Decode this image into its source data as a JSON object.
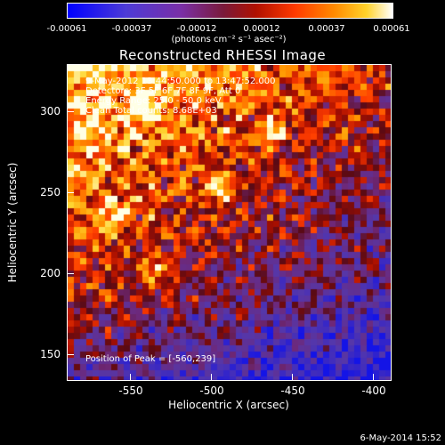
{
  "colorbar": {
    "ticks": [
      "-0.00061",
      "-0.00037",
      "-0.00012",
      "0.00012",
      "0.00037",
      "0.00061"
    ],
    "unit_label": "(photons cm⁻² s⁻¹ asec⁻²)"
  },
  "title": "Reconstructed RHESSI Image",
  "info": {
    "time": "9-May-2012 13:44:50.000 to 13:47:52.000",
    "detectors": "Detectors: 3F 5F 6F 7F 8F 9F, Att 0",
    "energy": "Energy Range: 25.0 - 50.0 keV",
    "clean": "Clean    Total counts: 8.68E+03",
    "peak": "Position of Peak = [-560,239]"
  },
  "axes": {
    "xlabel": "Heliocentric X (arcsec)",
    "ylabel": "Heliocentric Y (arcsec)",
    "xticks": [
      "-550",
      "-500",
      "-450",
      "-400"
    ],
    "yticks": [
      "300",
      "250",
      "200",
      "150"
    ]
  },
  "timestamp": "6-May-2014 15:52",
  "colors": {
    "background": "#000000",
    "text": "#ffffff"
  }
}
